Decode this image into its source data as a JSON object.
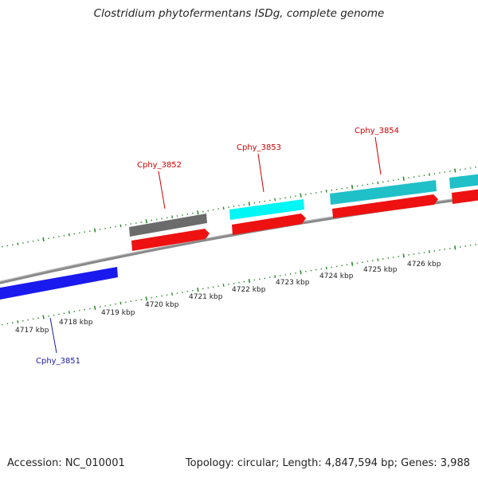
{
  "title": "Clostridium phytofermentans ISDg, complete genome",
  "footer": {
    "accession": "Accession: NC_010001",
    "summary": "Topology: circular; Length: 4,847,594 bp; Genes: 3,988"
  },
  "colors": {
    "background": "#ffffff",
    "backbone": "#8a8a8a",
    "tick": "#2e8b2e",
    "forward_gene_label": "#cc0000",
    "reverse_gene_label": "#1a1aaa",
    "gene_gray": "#6b6b6b",
    "gene_cyan": "#00f5f5",
    "gene_teal": "#20c0c8",
    "gene_red": "#ee1111",
    "gene_blue": "#1a1aee"
  },
  "ticks": [
    {
      "label": "4717 kbp"
    },
    {
      "label": "4718 kbp"
    },
    {
      "label": "4719 kbp"
    },
    {
      "label": "4720 kbp"
    },
    {
      "label": "4721 kbp"
    },
    {
      "label": "4722 kbp"
    },
    {
      "label": "4723 kbp"
    },
    {
      "label": "4724 kbp"
    },
    {
      "label": "4725 kbp"
    },
    {
      "label": "4726 kbp"
    }
  ],
  "genes": [
    {
      "name": "Cphy_3851",
      "strand": "reverse",
      "color": "blue"
    },
    {
      "name": "Cphy_3852",
      "strand": "forward",
      "color": "gray"
    },
    {
      "name": "Cphy_3853",
      "strand": "forward",
      "color": "cyan"
    },
    {
      "name": "Cphy_3854",
      "strand": "forward",
      "color": "teal"
    }
  ]
}
